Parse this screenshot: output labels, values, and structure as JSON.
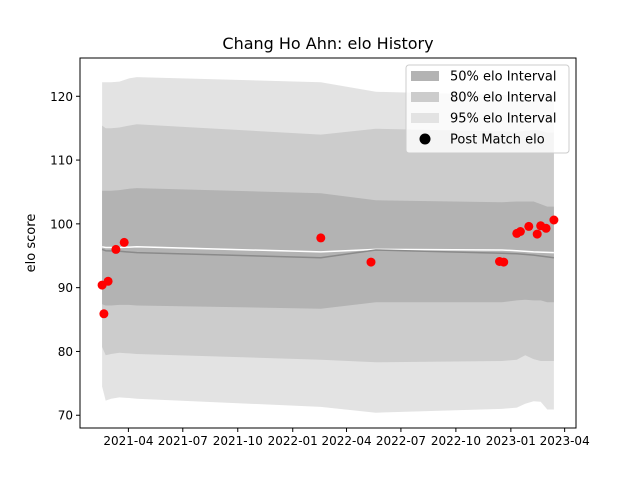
{
  "chart_data": {
    "type": "area",
    "title": "Chang Ho Ahn: elo History",
    "xlabel": "",
    "ylabel": "elo score",
    "xlim": [
      "2021-01-10",
      "2023-04-20"
    ],
    "ylim": [
      68,
      126
    ],
    "y_ticks": [
      70,
      80,
      90,
      100,
      110,
      120
    ],
    "x_ticks": [
      {
        "date": "2021-04-01",
        "label": "2021-04"
      },
      {
        "date": "2021-07-01",
        "label": "2021-07"
      },
      {
        "date": "2021-10-01",
        "label": "2021-10"
      },
      {
        "date": "2022-01-01",
        "label": "2022-01"
      },
      {
        "date": "2022-04-01",
        "label": "2022-04"
      },
      {
        "date": "2022-07-01",
        "label": "2022-07"
      },
      {
        "date": "2022-10-01",
        "label": "2022-10"
      },
      {
        "date": "2023-01-01",
        "label": "2023-01"
      },
      {
        "date": "2023-04-01",
        "label": "2023-04"
      }
    ],
    "grid": false,
    "legend_position": "top-right",
    "legend": [
      {
        "label": "50% elo Interval",
        "kind": "patch",
        "color": "#b3b3b3"
      },
      {
        "label": "80% elo Interval",
        "kind": "patch",
        "color": "#cccccc"
      },
      {
        "label": "95% elo Interval",
        "kind": "patch",
        "color": "#e3e3e3"
      },
      {
        "label": "Post Match elo",
        "kind": "marker",
        "color": "#000000"
      }
    ],
    "bands": [
      {
        "name": "95% elo Interval",
        "color": "#e3e3e3",
        "x": [
          "2021-02-16",
          "2021-02-22",
          "2021-03-03",
          "2021-03-17",
          "2021-04-02",
          "2021-04-15",
          "2022-02-17",
          "2022-05-20",
          "2022-12-17",
          "2023-01-11",
          "2023-01-25",
          "2023-02-08",
          "2023-02-20",
          "2023-03-03",
          "2023-03-14"
        ],
        "lower": [
          74.5,
          72.3,
          72.6,
          72.8,
          72.7,
          72.6,
          71.3,
          70.4,
          71.0,
          71.2,
          71.8,
          72.2,
          72.1,
          70.9,
          70.9
        ],
        "upper": [
          122.2,
          122.2,
          122.2,
          122.3,
          122.8,
          123.0,
          122.2,
          120.7,
          120.2,
          120.2,
          120.3,
          120.4,
          120.3,
          120.2,
          120.2
        ]
      },
      {
        "name": "80% elo Interval",
        "color": "#cccccc",
        "x": [
          "2021-02-16",
          "2021-02-22",
          "2021-03-03",
          "2021-03-17",
          "2021-04-02",
          "2021-04-15",
          "2022-02-17",
          "2022-05-20",
          "2022-12-17",
          "2023-01-11",
          "2023-01-25",
          "2023-02-08",
          "2023-02-20",
          "2023-03-03",
          "2023-03-14"
        ],
        "lower": [
          80.7,
          79.4,
          79.6,
          79.8,
          79.7,
          79.6,
          78.7,
          78.3,
          78.5,
          78.7,
          79.4,
          78.8,
          78.5,
          78.5,
          78.5
        ],
        "upper": [
          115.4,
          115.0,
          115.0,
          115.1,
          115.4,
          115.6,
          114.0,
          114.9,
          114.5,
          114.4,
          114.6,
          114.7,
          114.6,
          114.3,
          114.3
        ]
      },
      {
        "name": "50% elo Interval",
        "color": "#b3b3b3",
        "x": [
          "2021-02-16",
          "2021-02-22",
          "2021-03-03",
          "2021-03-17",
          "2021-04-02",
          "2021-04-15",
          "2022-02-17",
          "2022-05-20",
          "2022-12-17",
          "2023-01-11",
          "2023-01-25",
          "2023-02-08",
          "2023-02-20",
          "2023-03-03",
          "2023-03-14"
        ],
        "lower": [
          87.4,
          87.2,
          87.2,
          87.3,
          87.3,
          87.2,
          86.7,
          87.7,
          87.7,
          88.0,
          88.1,
          88.0,
          88.0,
          87.7,
          87.7
        ],
        "upper": [
          105.2,
          105.2,
          105.2,
          105.3,
          105.5,
          105.6,
          104.8,
          103.7,
          103.4,
          103.5,
          103.5,
          103.5,
          103.1,
          102.7,
          102.7
        ]
      }
    ],
    "lines": [
      {
        "color": "#ffffff",
        "x": [
          "2021-02-16",
          "2021-02-22",
          "2021-03-17",
          "2021-04-15",
          "2022-02-17",
          "2022-05-20",
          "2022-12-17",
          "2023-01-11",
          "2023-02-08",
          "2023-03-14"
        ],
        "y": [
          96.4,
          96.3,
          96.3,
          96.4,
          95.6,
          96.0,
          95.9,
          95.8,
          95.6,
          95.5
        ]
      },
      {
        "color": "#8a8a8a",
        "x": [
          "2021-02-16",
          "2021-02-22",
          "2021-03-17",
          "2021-04-15",
          "2022-02-17",
          "2022-05-20",
          "2022-12-17",
          "2023-01-11",
          "2023-02-08",
          "2023-03-14"
        ],
        "y": [
          96.0,
          95.8,
          95.7,
          95.5,
          94.7,
          95.9,
          95.4,
          95.3,
          95.1,
          94.7
        ]
      }
    ],
    "points": {
      "name": "Post Match elo",
      "color": "#ff0000",
      "x": [
        "2021-02-16",
        "2021-02-19",
        "2021-02-26",
        "2021-03-11",
        "2021-03-25",
        "2022-02-17",
        "2022-05-12",
        "2022-12-13",
        "2022-12-20",
        "2023-01-11",
        "2023-01-17",
        "2023-01-31",
        "2023-02-14",
        "2023-02-20",
        "2023-03-01",
        "2023-03-14"
      ],
      "y": [
        90.4,
        85.9,
        91.0,
        96.0,
        97.1,
        97.8,
        94.0,
        94.1,
        94.0,
        98.5,
        98.8,
        99.6,
        98.4,
        99.7,
        99.3,
        100.6
      ]
    }
  }
}
